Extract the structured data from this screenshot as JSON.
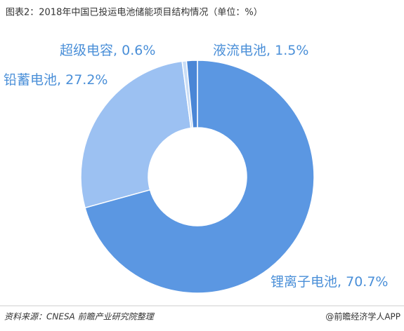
{
  "chart_data": {
    "type": "donut",
    "title": "图表2：2018年中国已投运电池储能项目结构情况（单位：%）",
    "categories": [
      "锂离子电池",
      "铅蓄电池",
      "超级电容",
      "液流电池"
    ],
    "values": [
      70.7,
      27.2,
      0.6,
      1.5
    ],
    "value_labels": [
      "70.7%",
      "27.2%",
      "0.6%",
      "1.5%"
    ],
    "colors": [
      "#5b97e2",
      "#9cc1f2",
      "#c9ddf6",
      "#4a86d6"
    ]
  },
  "source": "资料来源：CNESA 前瞻产业研究院整理",
  "credit": "@前瞻经济学人APP"
}
